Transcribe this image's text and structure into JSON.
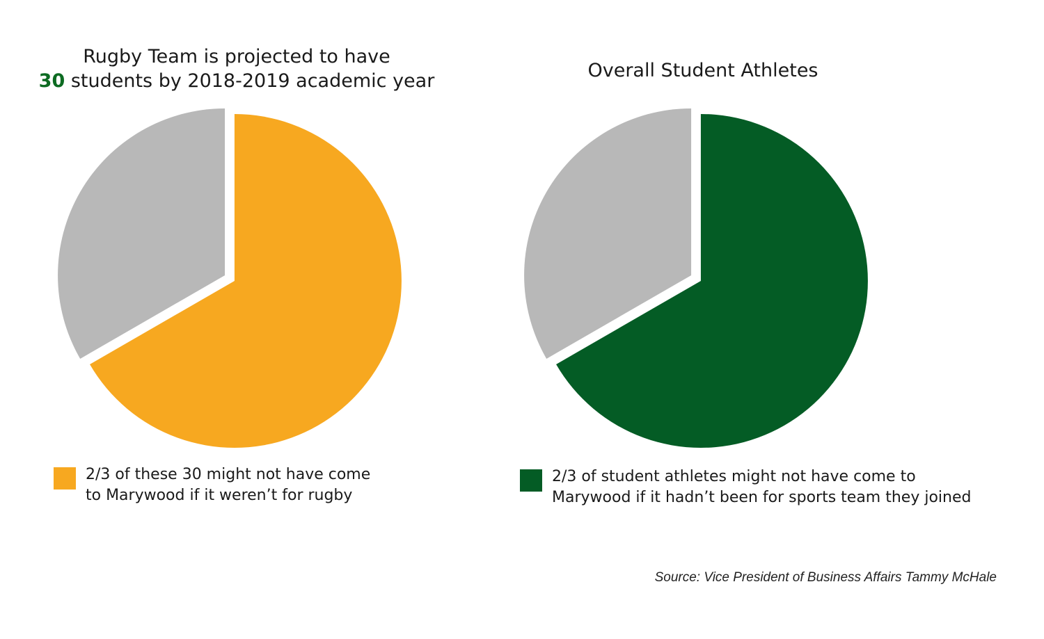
{
  "colors": {
    "orange": "#f7a820",
    "gray": "#b8b8b8",
    "green": "#045c25",
    "highlight_green": "#0d6b22"
  },
  "chart_data": [
    {
      "type": "pie",
      "title": {
        "line1": "Rugby Team is projected to have",
        "line2_highlight": "30",
        "line2_rest": " students by 2018-2019 academic year"
      },
      "slices": [
        {
          "label": "2/3 of these 30 might not have come to Marywood if it weren’t for rugby",
          "value": 0.6667,
          "color": "#f7a820"
        },
        {
          "label": "",
          "value": 0.3333,
          "color": "#b8b8b8"
        }
      ],
      "legend": {
        "line1": "2/3 of these 30 might not have come",
        "line2": "to Marywood if it weren’t for rugby"
      }
    },
    {
      "type": "pie",
      "title": {
        "text": "Overall Student Athletes"
      },
      "slices": [
        {
          "label": "2/3 of student athletes might not have come to Marywood if it hadn’t been for sports team they joined",
          "value": 0.6667,
          "color": "#045c25"
        },
        {
          "label": "",
          "value": 0.3333,
          "color": "#b8b8b8"
        }
      ],
      "legend": {
        "line1": "2/3 of student athletes might not have come to",
        "line2": "Marywood if it hadn’t been for sports team they joined"
      }
    }
  ],
  "source": "Source: Vice President of Business Affairs Tammy McHale"
}
